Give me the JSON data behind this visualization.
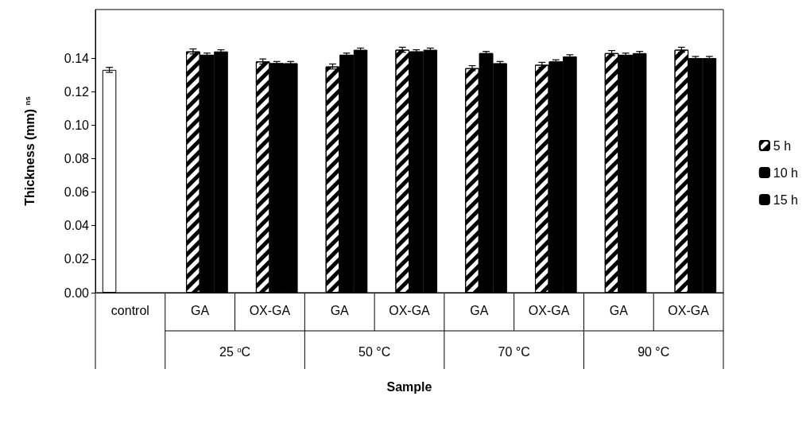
{
  "chart_data": {
    "type": "bar",
    "xlabel": "Sample",
    "ylabel": "Thickness (mm) $^{ns}$",
    "categories": [
      "control",
      "GA",
      "OX-GA",
      "GA",
      "OX-GA",
      "GA",
      "OX-GA",
      "GA",
      "OX-GA"
    ],
    "annotations": [
      "25 $^{o}$C",
      "50 °C",
      "70 °C",
      "90 °C"
    ],
    "series": [
      {
        "color": "#ffffff",
        "values": [
          0.133,
          null,
          null,
          null,
          null,
          null,
          null,
          null,
          null
        ],
        "errors": [
          0.0015,
          null,
          null,
          null,
          null,
          null,
          null,
          null,
          null
        ]
      },
      {
        "name": "5 h",
        "color": "#ffffff",
        "values": [
          null,
          0.144,
          0.138,
          0.135,
          0.145,
          0.134,
          0.136,
          0.143,
          0.145
        ],
        "errors": [
          null,
          0.0015,
          0.0015,
          0.0015,
          0.0015,
          0.0015,
          0.0015,
          0.0015,
          0.0015
        ]
      },
      {
        "name": "10 h",
        "color": "#000000",
        "values": [
          null,
          0.142,
          0.137,
          0.142,
          0.144,
          0.143,
          0.138,
          0.142,
          0.14
        ],
        "errors": [
          null,
          0.001,
          0.001,
          0.001,
          0.001,
          0.001,
          0.001,
          0.001,
          0.001
        ]
      },
      {
        "name": "15 h",
        "color": "#000000",
        "values": [
          null,
          0.144,
          0.137,
          0.145,
          0.145,
          0.137,
          0.141,
          0.143,
          0.14
        ],
        "errors": [
          null,
          0.001,
          0.001,
          0.001,
          0.001,
          0.001,
          0.001,
          0.001,
          0.001
        ]
      }
    ],
    "ylim": [
      0,
      0.169
    ],
    "yticks": [
      {
        "value": 0,
        "label": "0.00"
      },
      {
        "value": 0.02,
        "label": "0.02"
      },
      {
        "value": 0.04,
        "label": "0.04"
      },
      {
        "value": 0.06,
        "label": "0.06"
      },
      {
        "value": 0.08,
        "label": "0.08"
      },
      {
        "value": 0.1,
        "label": "0.10"
      },
      {
        "value": 0.12,
        "label": "0.12"
      },
      {
        "value": 0.14,
        "label": "0.14"
      }
    ],
    "grid": false,
    "legend": "right"
  }
}
